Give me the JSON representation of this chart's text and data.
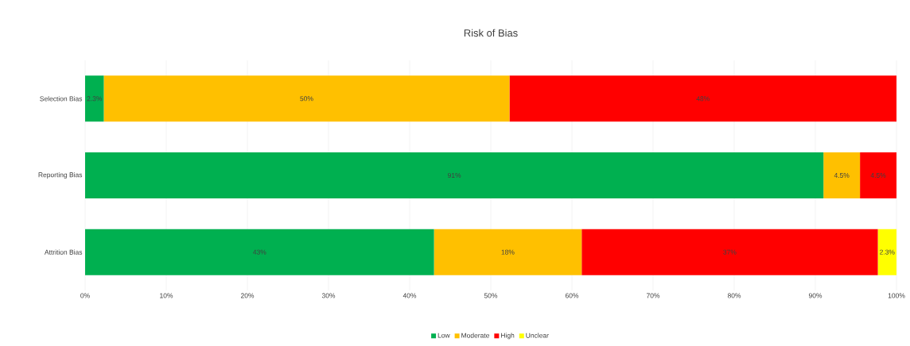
{
  "chart_data": {
    "type": "bar",
    "orientation": "horizontal",
    "stacked": true,
    "title": "Risk of Bias",
    "categories": [
      "Selection Bias",
      "Reporting Bias",
      "Attrition Bias"
    ],
    "series": [
      {
        "name": "Low",
        "color": "#00b050",
        "values": [
          2.3,
          91,
          43
        ],
        "value_labels": [
          "2.3%",
          "91%",
          "43%"
        ]
      },
      {
        "name": "Moderate",
        "color": "#ffc000",
        "values": [
          50,
          4.5,
          18.2
        ],
        "value_labels": [
          "50%",
          "4.5%",
          "18%"
        ]
      },
      {
        "name": "High",
        "color": "#ff0000",
        "values": [
          47.7,
          4.5,
          36.5
        ],
        "value_labels": [
          "48%",
          "4.5%",
          "37%"
        ]
      },
      {
        "name": "Unclear",
        "color": "#ffff00",
        "values": [
          null,
          null,
          2.3
        ],
        "value_labels": [
          null,
          null,
          "2.3%"
        ]
      }
    ],
    "xlim": [
      0,
      100
    ],
    "xticks": [
      {
        "value": 0,
        "label": "0%"
      },
      {
        "value": 10,
        "label": "10%"
      },
      {
        "value": 20,
        "label": "20%"
      },
      {
        "value": 30,
        "label": "30%"
      },
      {
        "value": 40,
        "label": "40%"
      },
      {
        "value": 50,
        "label": "50%"
      },
      {
        "value": 60,
        "label": "60%"
      },
      {
        "value": 70,
        "label": "70%"
      },
      {
        "value": 80,
        "label": "80%"
      },
      {
        "value": 90,
        "label": "90%"
      },
      {
        "value": 100,
        "label": "100%"
      }
    ],
    "grid": "x",
    "legend": "bottom"
  }
}
